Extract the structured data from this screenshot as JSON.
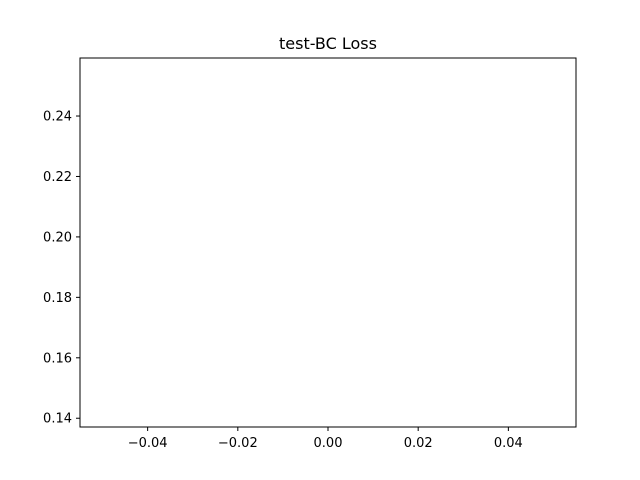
{
  "chart_data": {
    "type": "line",
    "title": "test-BC Loss",
    "xlabel": "",
    "ylabel": "",
    "xlim": [
      -0.055,
      0.055
    ],
    "ylim": [
      0.1371,
      0.2592
    ],
    "x_ticks": [
      -0.04,
      -0.02,
      0.0,
      0.02,
      0.04
    ],
    "x_tick_labels": [
      "−0.04",
      "−0.02",
      "0.00",
      "0.02",
      "0.04"
    ],
    "y_ticks": [
      0.14,
      0.16,
      0.18,
      0.2,
      0.22,
      0.24
    ],
    "y_tick_labels": [
      "0.14",
      "0.16",
      "0.18",
      "0.20",
      "0.22",
      "0.24"
    ],
    "series": [
      {
        "x": [],
        "values": []
      }
    ],
    "grid": false,
    "legend": "none"
  }
}
